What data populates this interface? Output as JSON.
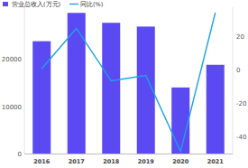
{
  "chart_data": {
    "type": "bar",
    "categories": [
      "2016",
      "2017",
      "2018",
      "2019",
      "2020",
      "2021"
    ],
    "series": [
      {
        "name": "营业总收入(万元)",
        "type": "bar",
        "color": "#5b4af2",
        "values": [
          23800,
          29800,
          27700,
          26900,
          14000,
          18800
        ]
      },
      {
        "name": "同比(%)",
        "type": "line",
        "color": "#1ba1e6",
        "axis": "y2",
        "values": [
          0.5,
          24.4,
          -6.8,
          -3.6,
          -48.8,
          33.8
        ]
      }
    ],
    "ylim": [
      0,
      31000
    ],
    "yticks": [
      0,
      10000,
      20000
    ],
    "y2lim": [
      -50,
      37
    ],
    "y2ticks": [
      -40,
      -20,
      0,
      20
    ],
    "grid": false,
    "legend": "top-left"
  }
}
